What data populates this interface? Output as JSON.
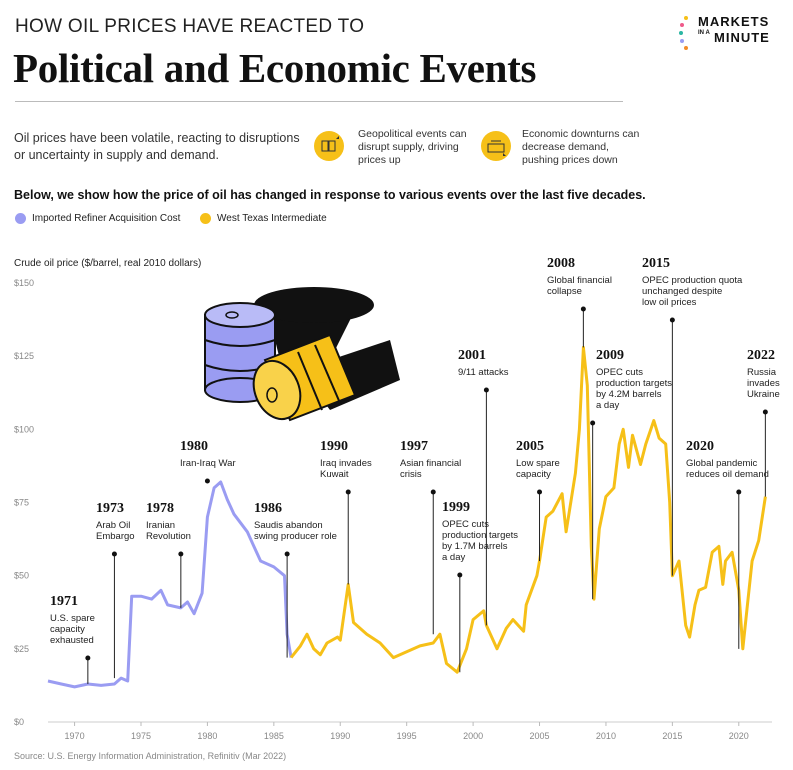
{
  "header": {
    "pre_title": "HOW OIL PRICES HAVE REACTED TO",
    "title": "Political and Economic Events",
    "logo": {
      "line1": "MARKETS",
      "small": "IN A",
      "line3": "MINUTE"
    }
  },
  "intro": "Oil prices have been volatile, reacting to disruptions or uncertainty in supply and demand.",
  "callouts": [
    {
      "icon": "supply-up-icon",
      "text": "Geopolitical events can disrupt supply, driving prices up"
    },
    {
      "icon": "demand-down-icon",
      "text": "Economic downturns can decrease demand, pushing prices down"
    }
  ],
  "subhead": "Below, we show how the price of oil has changed in response to various events over the last five decades.",
  "legend": [
    {
      "label": "Imported Refiner Acquisition Cost",
      "color": "#9a9cf2"
    },
    {
      "label": "West Texas Intermediate",
      "color": "#f6c018"
    }
  ],
  "source": "Source: U.S. Energy Information Administration, Refinitiv (Mar 2022)",
  "chart_data": {
    "type": "line",
    "ylabel": "Crude oil price ($/barrel, real 2010 dollars)",
    "ylim": [
      0,
      150
    ],
    "xlim": [
      1968,
      2022.5
    ],
    "yticks": [
      0,
      25,
      50,
      75,
      100,
      125,
      150
    ],
    "ytick_labels": [
      "$0",
      "$25",
      "$50",
      "$75",
      "$100",
      "$125",
      "$150"
    ],
    "xticks": [
      1970,
      1975,
      1980,
      1985,
      1990,
      1995,
      2000,
      2005,
      2010,
      2015,
      2020
    ],
    "grid": false,
    "legend_position": "top-left",
    "series": [
      {
        "name": "Imported Refiner Acquisition Cost",
        "color": "#9a9cf2",
        "points": [
          [
            1968,
            14
          ],
          [
            1969,
            13
          ],
          [
            1970,
            12
          ],
          [
            1971,
            13
          ],
          [
            1972,
            12.5
          ],
          [
            1973,
            13
          ],
          [
            1973.5,
            15
          ],
          [
            1974,
            14
          ],
          [
            1974.3,
            43
          ],
          [
            1975,
            43
          ],
          [
            1975.8,
            42
          ],
          [
            1976.5,
            45
          ],
          [
            1977,
            40
          ],
          [
            1978,
            39
          ],
          [
            1978.5,
            41
          ],
          [
            1979,
            37
          ],
          [
            1979.6,
            44
          ],
          [
            1980,
            70
          ],
          [
            1980.5,
            80
          ],
          [
            1981,
            82
          ],
          [
            1981.5,
            76
          ],
          [
            1982,
            71
          ],
          [
            1983,
            65
          ],
          [
            1983.5,
            60
          ],
          [
            1984,
            55
          ],
          [
            1985,
            53
          ],
          [
            1985.8,
            50
          ],
          [
            1986,
            30
          ],
          [
            1986.3,
            22
          ]
        ]
      },
      {
        "name": "West Texas Intermediate",
        "color": "#f6c018",
        "points": [
          [
            1986.3,
            22
          ],
          [
            1987,
            26
          ],
          [
            1987.5,
            30
          ],
          [
            1988,
            25
          ],
          [
            1988.5,
            23
          ],
          [
            1989,
            27
          ],
          [
            1989.8,
            29
          ],
          [
            1990,
            28
          ],
          [
            1990.6,
            47
          ],
          [
            1991,
            34
          ],
          [
            1992,
            30
          ],
          [
            1993,
            27
          ],
          [
            1994,
            22
          ],
          [
            1995,
            24
          ],
          [
            1996,
            26
          ],
          [
            1997,
            27
          ],
          [
            1997.5,
            30
          ],
          [
            1998,
            20
          ],
          [
            1998.8,
            17
          ],
          [
            1999.5,
            25
          ],
          [
            2000,
            35
          ],
          [
            2000.8,
            38
          ],
          [
            2001,
            33
          ],
          [
            2001.8,
            25
          ],
          [
            2002.5,
            32
          ],
          [
            2003,
            35
          ],
          [
            2003.8,
            31
          ],
          [
            2004,
            40
          ],
          [
            2004.8,
            50
          ],
          [
            2005,
            55
          ],
          [
            2005.5,
            70
          ],
          [
            2006,
            72
          ],
          [
            2006.7,
            78
          ],
          [
            2007,
            65
          ],
          [
            2007.7,
            85
          ],
          [
            2008,
            100
          ],
          [
            2008.3,
            128
          ],
          [
            2008.6,
            115
          ],
          [
            2008.9,
            60
          ],
          [
            2009.1,
            42
          ],
          [
            2009.5,
            66
          ],
          [
            2010,
            77
          ],
          [
            2010.6,
            80
          ],
          [
            2011,
            95
          ],
          [
            2011.3,
            100
          ],
          [
            2011.7,
            87
          ],
          [
            2012,
            98
          ],
          [
            2012.6,
            88
          ],
          [
            2013,
            95
          ],
          [
            2013.6,
            103
          ],
          [
            2014,
            97
          ],
          [
            2014.5,
            95
          ],
          [
            2014.8,
            75
          ],
          [
            2015,
            50
          ],
          [
            2015.5,
            55
          ],
          [
            2016,
            33
          ],
          [
            2016.3,
            29
          ],
          [
            2016.7,
            40
          ],
          [
            2017,
            45
          ],
          [
            2017.5,
            46
          ],
          [
            2018,
            58
          ],
          [
            2018.5,
            60
          ],
          [
            2018.8,
            47
          ],
          [
            2019,
            55
          ],
          [
            2019.5,
            58
          ],
          [
            2020,
            45
          ],
          [
            2020.3,
            25
          ],
          [
            2020.6,
            38
          ],
          [
            2021,
            55
          ],
          [
            2021.5,
            62
          ],
          [
            2022,
            77
          ]
        ]
      }
    ],
    "annotations": [
      {
        "year_label": "1971",
        "text": "U.S. spare capacity exhausted",
        "x": 1971,
        "y": 13
      },
      {
        "year_label": "1973",
        "text": "Arab Oil Embargo",
        "x": 1973,
        "y": 15
      },
      {
        "year_label": "1978",
        "text": "Iranian Revolution",
        "x": 1978,
        "y": 39
      },
      {
        "year_label": "1980",
        "text": "Iran-Iraq War",
        "x": 1980,
        "y": 82
      },
      {
        "year_label": "1986",
        "text": "Saudis abandon swing producer role",
        "x": 1986,
        "y": 22
      },
      {
        "year_label": "1990",
        "text": "Iraq invades Kuwait",
        "x": 1990.6,
        "y": 47
      },
      {
        "year_label": "1997",
        "text": "Asian financial crisis",
        "x": 1997,
        "y": 30
      },
      {
        "year_label": "1999",
        "text": "OPEC cuts production targets by 1.7M barrels a day",
        "x": 1999,
        "y": 17
      },
      {
        "year_label": "2001",
        "text": "9/11 attacks",
        "x": 2001,
        "y": 33
      },
      {
        "year_label": "2005",
        "text": "Low spare capacity",
        "x": 2005,
        "y": 55
      },
      {
        "year_label": "2008",
        "text": "Global financial collapse",
        "x": 2008.3,
        "y": 128
      },
      {
        "year_label": "2009",
        "text": "OPEC cuts production targets by 4.2M barrels a day",
        "x": 2009,
        "y": 42
      },
      {
        "year_label": "2015",
        "text": "OPEC production quota unchanged despite low oil prices",
        "x": 2015,
        "y": 50
      },
      {
        "year_label": "2020",
        "text": "Global pandemic reduces oil demand",
        "x": 2020,
        "y": 25
      },
      {
        "year_label": "2022",
        "text": "Russia invades Ukraine",
        "x": 2022,
        "y": 77
      }
    ]
  }
}
